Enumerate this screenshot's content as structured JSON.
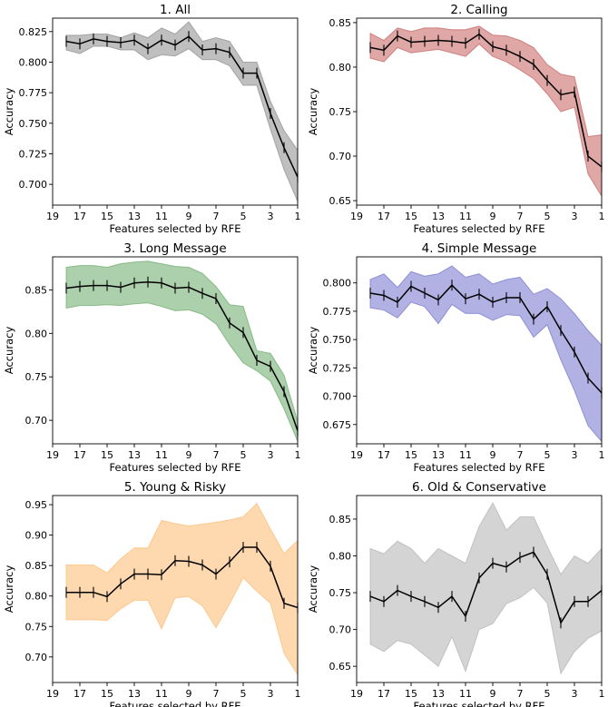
{
  "figure": {
    "shared_xlabel": "Features selected by RFE",
    "shared_ylabel": "Accuracy",
    "x_ticks": [
      19,
      17,
      15,
      13,
      11,
      9,
      7,
      5,
      3,
      1
    ],
    "line_color": "#000000"
  },
  "chart_data": [
    {
      "type": "line",
      "title": "1. All",
      "xlabel": "Features selected by RFE",
      "ylabel": "Accuracy",
      "xlim": [
        19,
        1
      ],
      "ylim": [
        0.683,
        0.836
      ],
      "y_ticks": [
        0.7,
        0.725,
        0.75,
        0.775,
        0.8,
        0.825
      ],
      "y_tick_labels": [
        "0.700",
        "0.725",
        "0.750",
        "0.775",
        "0.800",
        "0.825"
      ],
      "band_color": "#808080",
      "x": [
        18,
        17,
        16,
        15,
        14,
        13,
        12,
        11,
        10,
        9,
        8,
        7,
        6,
        5,
        4,
        3,
        2,
        1
      ],
      "values": [
        0.817,
        0.815,
        0.819,
        0.817,
        0.816,
        0.818,
        0.811,
        0.818,
        0.814,
        0.821,
        0.81,
        0.811,
        0.808,
        0.791,
        0.791,
        0.758,
        0.73,
        0.706
      ],
      "band_upper": [
        0.822,
        0.822,
        0.823,
        0.823,
        0.82,
        0.824,
        0.82,
        0.828,
        0.823,
        0.833,
        0.817,
        0.82,
        0.817,
        0.8,
        0.8,
        0.768,
        0.744,
        0.728
      ],
      "band_lower": [
        0.81,
        0.807,
        0.813,
        0.813,
        0.81,
        0.81,
        0.802,
        0.806,
        0.805,
        0.811,
        0.802,
        0.802,
        0.797,
        0.781,
        0.781,
        0.745,
        0.712,
        0.686
      ]
    },
    {
      "type": "line",
      "title": "2. Calling",
      "xlabel": "Features selected by RFE",
      "ylabel": "Accuracy",
      "xlim": [
        19,
        1
      ],
      "ylim": [
        0.645,
        0.855
      ],
      "y_ticks": [
        0.65,
        0.7,
        0.75,
        0.8,
        0.85
      ],
      "y_tick_labels": [
        "0.65",
        "0.70",
        "0.75",
        "0.80",
        "0.85"
      ],
      "band_color": "#c0504d",
      "x": [
        18,
        17,
        16,
        15,
        14,
        13,
        12,
        11,
        10,
        9,
        8,
        7,
        6,
        5,
        4,
        3,
        2,
        1
      ],
      "values": [
        0.822,
        0.819,
        0.835,
        0.828,
        0.829,
        0.83,
        0.829,
        0.827,
        0.837,
        0.823,
        0.819,
        0.812,
        0.803,
        0.785,
        0.769,
        0.772,
        0.7,
        0.688
      ],
      "band_upper": [
        0.838,
        0.83,
        0.844,
        0.84,
        0.844,
        0.844,
        0.842,
        0.842,
        0.846,
        0.836,
        0.835,
        0.83,
        0.822,
        0.803,
        0.792,
        0.789,
        0.722,
        0.724
      ],
      "band_lower": [
        0.81,
        0.806,
        0.822,
        0.816,
        0.818,
        0.82,
        0.816,
        0.812,
        0.826,
        0.812,
        0.806,
        0.797,
        0.787,
        0.77,
        0.75,
        0.755,
        0.68,
        0.655
      ]
    },
    {
      "type": "line",
      "title": "3. Long Message",
      "xlabel": "Features selected by RFE",
      "ylabel": "Accuracy",
      "xlim": [
        19,
        1
      ],
      "ylim": [
        0.673,
        0.888
      ],
      "y_ticks": [
        0.7,
        0.75,
        0.8,
        0.85
      ],
      "y_tick_labels": [
        "0.70",
        "0.75",
        "0.80",
        "0.85"
      ],
      "band_color": "#5aa05a",
      "x": [
        18,
        17,
        16,
        15,
        14,
        13,
        12,
        11,
        10,
        9,
        8,
        7,
        6,
        5,
        4,
        3,
        2,
        1
      ],
      "values": [
        0.852,
        0.854,
        0.855,
        0.855,
        0.853,
        0.858,
        0.859,
        0.858,
        0.852,
        0.853,
        0.846,
        0.84,
        0.812,
        0.801,
        0.769,
        0.762,
        0.733,
        0.688
      ],
      "band_upper": [
        0.876,
        0.878,
        0.878,
        0.876,
        0.88,
        0.882,
        0.883,
        0.88,
        0.877,
        0.876,
        0.869,
        0.854,
        0.833,
        0.831,
        0.78,
        0.777,
        0.752,
        0.699
      ],
      "band_lower": [
        0.829,
        0.832,
        0.832,
        0.833,
        0.832,
        0.834,
        0.835,
        0.831,
        0.826,
        0.827,
        0.822,
        0.811,
        0.787,
        0.766,
        0.757,
        0.745,
        0.713,
        0.676
      ]
    },
    {
      "type": "line",
      "title": "4. Simple Message",
      "xlabel": "Features selected by RFE",
      "ylabel": "Accuracy",
      "xlim": [
        19,
        1
      ],
      "ylim": [
        0.658,
        0.823
      ],
      "y_ticks": [
        0.675,
        0.7,
        0.725,
        0.75,
        0.775,
        0.8
      ],
      "y_tick_labels": [
        "0.675",
        "0.700",
        "0.725",
        "0.750",
        "0.775",
        "0.800"
      ],
      "band_color": "#6464c8",
      "x": [
        18,
        17,
        16,
        15,
        14,
        13,
        12,
        11,
        10,
        9,
        8,
        7,
        6,
        5,
        4,
        3,
        2,
        1
      ],
      "values": [
        0.791,
        0.789,
        0.783,
        0.797,
        0.791,
        0.785,
        0.798,
        0.786,
        0.79,
        0.783,
        0.787,
        0.787,
        0.768,
        0.779,
        0.758,
        0.739,
        0.716,
        0.703
      ],
      "band_upper": [
        0.803,
        0.808,
        0.796,
        0.81,
        0.806,
        0.808,
        0.815,
        0.805,
        0.808,
        0.799,
        0.803,
        0.805,
        0.79,
        0.795,
        0.786,
        0.773,
        0.758,
        0.745
      ],
      "band_lower": [
        0.778,
        0.776,
        0.769,
        0.783,
        0.779,
        0.764,
        0.781,
        0.773,
        0.773,
        0.767,
        0.772,
        0.771,
        0.752,
        0.763,
        0.732,
        0.705,
        0.674,
        0.66
      ]
    },
    {
      "type": "line",
      "title": "5. Young & Risky",
      "xlabel": "Features selected by RFE",
      "ylabel": "Accuracy",
      "xlim": [
        19,
        1
      ],
      "ylim": [
        0.658,
        0.965
      ],
      "y_ticks": [
        0.7,
        0.75,
        0.8,
        0.85,
        0.9,
        0.95
      ],
      "y_tick_labels": [
        "0.70",
        "0.75",
        "0.80",
        "0.85",
        "0.90",
        "0.95"
      ],
      "band_color": "#fdb462",
      "x": [
        18,
        17,
        16,
        15,
        14,
        13,
        12,
        11,
        10,
        9,
        8,
        7,
        6,
        5,
        4,
        3,
        2,
        1
      ],
      "values": [
        0.806,
        0.806,
        0.806,
        0.799,
        0.82,
        0.836,
        0.836,
        0.835,
        0.858,
        0.857,
        0.851,
        0.836,
        0.856,
        0.88,
        0.88,
        0.849,
        0.788,
        0.781
      ],
      "band_upper": [
        0.851,
        0.851,
        0.851,
        0.838,
        0.861,
        0.879,
        0.879,
        0.924,
        0.919,
        0.915,
        0.918,
        0.921,
        0.925,
        0.93,
        0.952,
        0.91,
        0.87,
        0.891
      ],
      "band_lower": [
        0.761,
        0.761,
        0.761,
        0.76,
        0.779,
        0.793,
        0.793,
        0.746,
        0.797,
        0.799,
        0.784,
        0.748,
        0.787,
        0.83,
        0.808,
        0.788,
        0.706,
        0.671
      ]
    },
    {
      "type": "line",
      "title": "6. Old & Conservative",
      "xlabel": "Features selected by RFE",
      "ylabel": "Accuracy",
      "xlim": [
        19,
        1
      ],
      "ylim": [
        0.628,
        0.882
      ],
      "y_ticks": [
        0.65,
        0.7,
        0.75,
        0.8,
        0.85
      ],
      "y_tick_labels": [
        "0.65",
        "0.70",
        "0.75",
        "0.80",
        "0.85"
      ],
      "band_color": "#aaaaaa",
      "x": [
        18,
        17,
        16,
        15,
        14,
        13,
        12,
        11,
        10,
        9,
        8,
        7,
        6,
        5,
        4,
        3,
        2,
        1
      ],
      "values": [
        0.745,
        0.738,
        0.753,
        0.745,
        0.738,
        0.73,
        0.745,
        0.718,
        0.77,
        0.79,
        0.785,
        0.798,
        0.805,
        0.775,
        0.709,
        0.738,
        0.738,
        0.753
      ],
      "band_upper": [
        0.81,
        0.803,
        0.82,
        0.81,
        0.79,
        0.81,
        0.8,
        0.79,
        0.84,
        0.872,
        0.835,
        0.853,
        0.853,
        0.813,
        0.775,
        0.8,
        0.79,
        0.81
      ],
      "band_lower": [
        0.68,
        0.67,
        0.685,
        0.68,
        0.665,
        0.65,
        0.69,
        0.643,
        0.7,
        0.708,
        0.735,
        0.743,
        0.757,
        0.736,
        0.64,
        0.67,
        0.688,
        0.698
      ]
    }
  ]
}
